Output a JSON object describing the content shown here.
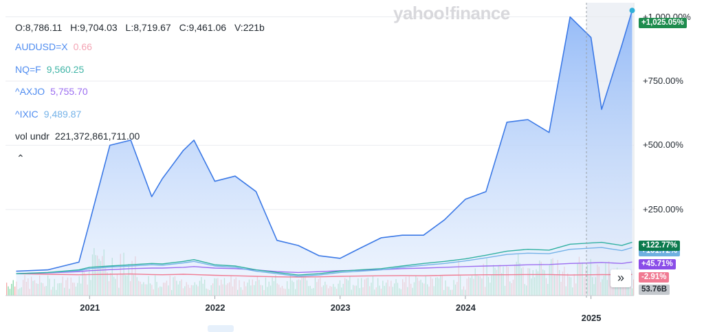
{
  "watermark": "yahoo!finance",
  "ohlc": {
    "open": "O:8,786.11",
    "high": "H:9,704.03",
    "low": "L:8,719.67",
    "close": "C:9,461.06",
    "volume": "V:221b"
  },
  "legend": [
    {
      "symbol": "AUDUSD=X",
      "value": "0.66",
      "color": "#4f8cf0",
      "value_color": "#f4a4b4"
    },
    {
      "symbol": "NQ=F",
      "value": "9,560.25",
      "color": "#4f8cf0",
      "value_color": "#3fb4a6"
    },
    {
      "symbol": "^AXJO",
      "value": "5,755.70",
      "color": "#4f8cf0",
      "value_color": "#9b6cf0"
    },
    {
      "symbol": "^IXIC",
      "value": "9,489.87",
      "color": "#4f8cf0",
      "value_color": "#74b2e8"
    },
    {
      "symbol": "vol undr",
      "value": "221,372,861,711.00",
      "color": "#232a31",
      "value_color": "#232a31"
    }
  ],
  "collapse_icon": "chevron-up-icon",
  "colors": {
    "main_line": "#3a78e6",
    "main_fill_top": "#8fb7f7",
    "nq": "#2fb0a1",
    "ixic": "#74b2e8",
    "axjo": "#9b6cf0",
    "audusd": "#f07a92",
    "vol_up": "#5cc98a",
    "vol_down": "#f08a8a"
  },
  "badges": [
    {
      "label": "+1,025.05%",
      "color": "#1e8c4e"
    },
    {
      "label": "+122.77%",
      "color": "#0b7a4d"
    },
    {
      "label": "+101.72%",
      "color": "#6fb0e0"
    },
    {
      "label": "+45.71%",
      "color": "#8a4de8"
    },
    {
      "label": "-2.91%",
      "color": "#f07a92"
    },
    {
      "label": "53.76B",
      "color": "#9aa0a6"
    }
  ],
  "expand_icon": "double-chevron-right-icon",
  "chart_data": {
    "type": "line",
    "title": "",
    "xlabel": "",
    "ylabel": "",
    "x_tick_labels": [
      "2021",
      "2022",
      "2023",
      "2024",
      "2025"
    ],
    "y_tick_labels": [
      "+250.00%",
      "+500.00%",
      "+750.00%",
      "+1,000.00%"
    ],
    "ylim": [
      -85,
      1055
    ],
    "y_unit": "%",
    "grid": true,
    "legend_placement": "top-left",
    "x": [
      "2020-06",
      "2020-09",
      "2020-12",
      "2021-01",
      "2021-03",
      "2021-05",
      "2021-07",
      "2021-08",
      "2021-10",
      "2021-11",
      "2022-01",
      "2022-03",
      "2022-05",
      "2022-07",
      "2022-09",
      "2022-11",
      "2023-01",
      "2023-03",
      "2023-05",
      "2023-07",
      "2023-09",
      "2023-11",
      "2024-01",
      "2024-03",
      "2024-05",
      "2024-07",
      "2024-09",
      "2024-11",
      "2025-01",
      "2025-02",
      "2025-04",
      "2025-05"
    ],
    "series": [
      {
        "name": "AUDUSD=X",
        "values": [
          10,
          15,
          45,
          200,
          500,
          520,
          300,
          370,
          480,
          520,
          360,
          380,
          320,
          130,
          110,
          70,
          60,
          100,
          140,
          150,
          150,
          210,
          290,
          320,
          590,
          600,
          550,
          1000,
          920,
          640,
          890,
          1025
        ]
      },
      {
        "name": "NQ=F",
        "values": [
          0,
          5,
          15,
          25,
          30,
          35,
          40,
          38,
          48,
          55,
          35,
          30,
          15,
          5,
          -5,
          0,
          10,
          15,
          20,
          30,
          40,
          48,
          58,
          72,
          88,
          95,
          92,
          115,
          120,
          122,
          110,
          122.77
        ]
      },
      {
        "name": "^IXIC",
        "values": [
          0,
          4,
          12,
          20,
          26,
          30,
          35,
          33,
          42,
          48,
          30,
          25,
          10,
          0,
          -10,
          -5,
          5,
          10,
          15,
          25,
          33,
          40,
          50,
          62,
          75,
          80,
          78,
          95,
          100,
          102,
          90,
          101.72
        ]
      },
      {
        "name": "^AXJO",
        "values": [
          0,
          3,
          8,
          12,
          16,
          20,
          22,
          22,
          25,
          28,
          22,
          20,
          15,
          8,
          5,
          8,
          12,
          14,
          16,
          20,
          22,
          25,
          28,
          30,
          32,
          35,
          36,
          40,
          42,
          44,
          40,
          45.71
        ]
      },
      {
        "name": "vol undr",
        "values": [
          0,
          -2,
          -4,
          -3,
          -2,
          -1,
          -3,
          -4,
          -2,
          -3,
          -6,
          -8,
          -10,
          -12,
          -13,
          -12,
          -10,
          -9,
          -8,
          -7,
          -8,
          -6,
          -5,
          -4,
          -4,
          -3,
          -3,
          -5,
          -4,
          -3,
          -4,
          -2.91
        ]
      }
    ]
  }
}
